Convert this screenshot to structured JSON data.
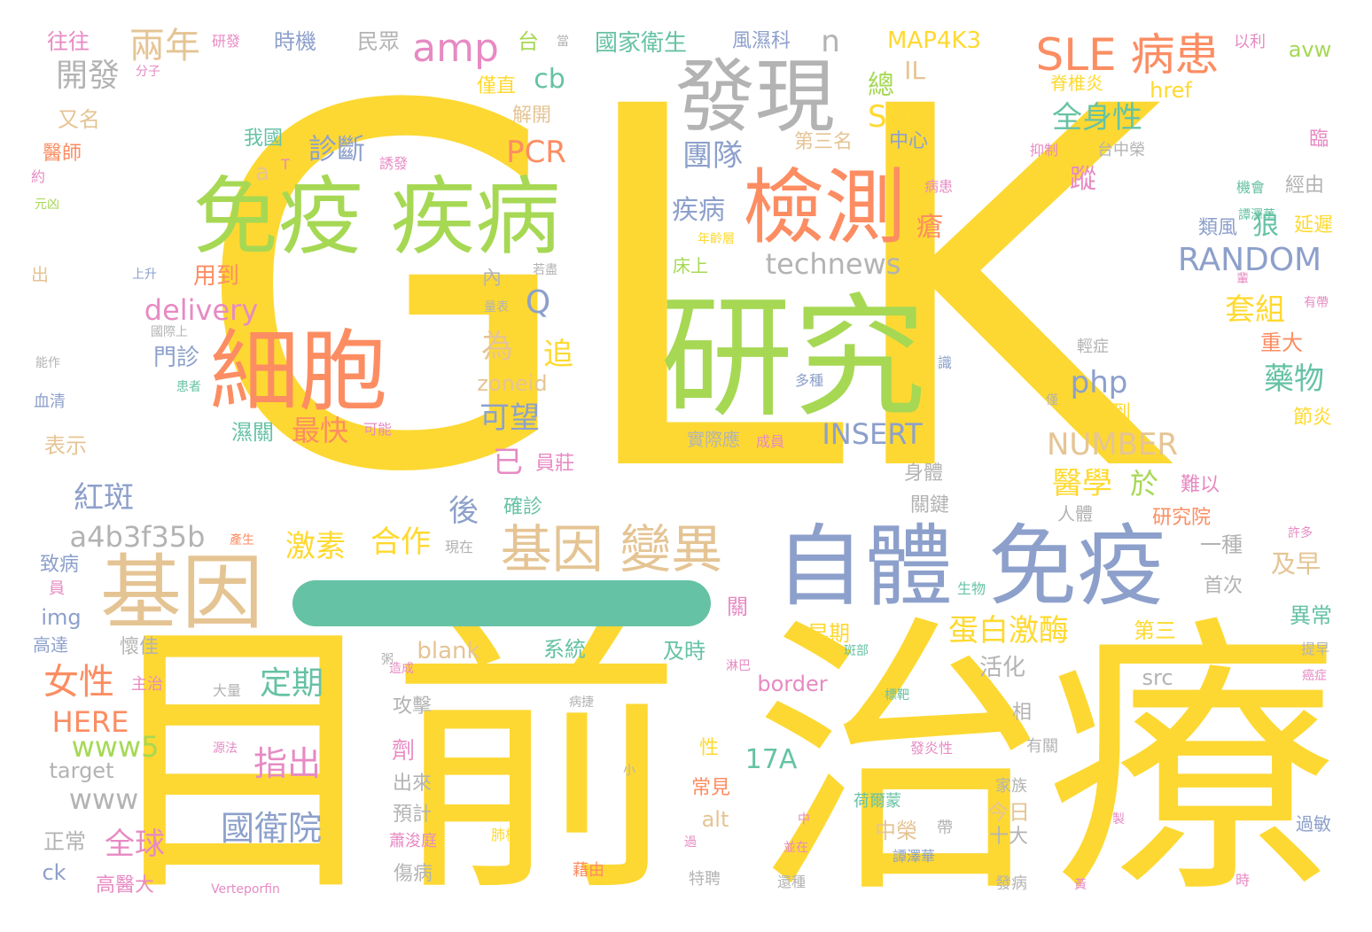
{
  "palette": {
    "yellow": "#fdd832",
    "green": "#a6d854",
    "orange": "#fc8d62",
    "blue": "#8da0cb",
    "pink": "#e78ac3",
    "teal": "#66c2a5",
    "tan": "#e5c494",
    "gray": "#b3b3b3"
  },
  "words": [
    "GLK",
    "目前",
    "治療",
    "研究",
    "免疫 疾病",
    "自體",
    "免疫",
    "檢測",
    "發現",
    "細胞",
    "基因",
    "基因 變異",
    "SLE 病患",
    "amp",
    "兩年",
    "開發",
    "RANDOM",
    "technews",
    "INSERT",
    "NUMBER",
    "a4b3f35b",
    "delivery",
    "女性",
    "HERE",
    "www5",
    "www",
    "target",
    "紅斑",
    "全球",
    "國衛院",
    "指出",
    "定期",
    "激素",
    "合作",
    "蛋白激酶",
    "診斷",
    "PCR",
    "團隊",
    "疾病",
    "php",
    "套組",
    "藥物",
    "醫學",
    "於",
    "Q",
    "為",
    "追",
    "可望",
    "已",
    "最快",
    "用到",
    "門診",
    "濕關",
    "全身性",
    "SLE",
    "總",
    "IL",
    "n",
    "cb",
    "台",
    "國家衛生",
    "時機",
    "民眾",
    "往往",
    "研發",
    "MAP4K3",
    "風濕科",
    "以利",
    "avw",
    "href",
    "脊椎炎",
    "僅直",
    "解開",
    "我國",
    "中心",
    "第三名",
    "蹤",
    "瘡",
    "類風",
    "狼",
    "延遲",
    "經由",
    "機會",
    "台中榮",
    "抑制",
    "臨",
    "zoneid",
    "blank",
    "系統",
    "及時",
    "border",
    "早期",
    "src",
    "活化",
    "第三",
    "異常",
    "首次",
    "一種",
    "及早",
    "研究院",
    "難以",
    "達到",
    "節炎",
    "重大",
    "輕症",
    "病患",
    "床上",
    "多種",
    "實際應",
    "成員",
    "身體",
    "關鍵",
    "人體",
    "17A",
    "alt",
    "中榮",
    "今日",
    "十大",
    "家族",
    "有關",
    "發病",
    "特聘",
    "還種",
    "藉由",
    "蕭浚庭",
    "傷病",
    "預計",
    "出來",
    "劑",
    "攻擊",
    "正常",
    "ck",
    "高醫大",
    "img",
    "員",
    "致病",
    "高達",
    "懷佳",
    "主治",
    "表示",
    "血清",
    "能作",
    "國際上",
    "上升",
    "出",
    "元凶",
    "約",
    "醫師",
    "又名",
    "分子",
    "誘發",
    "T",
    "a",
    "患者",
    "可能",
    "量表",
    "內",
    "若盡",
    "員莊",
    "確診",
    "後",
    "現在",
    "產生",
    "大量",
    "源法",
    "Verteporfin",
    "小",
    "過",
    "並在",
    "中",
    "過敏",
    "時",
    "帶",
    "製",
    "荷爾蒙",
    "發炎性",
    "斑部",
    "淋巴",
    "標靶",
    "病捷",
    "造成",
    "提早",
    "癌症",
    "許多",
    "生物",
    "關",
    "常見",
    "性",
    "相",
    "譚澤華",
    "年齡層",
    "有帶",
    "僅",
    "識",
    "輩",
    "當",
    "黃",
    "粥",
    "雲",
    "肺檢"
  ]
}
